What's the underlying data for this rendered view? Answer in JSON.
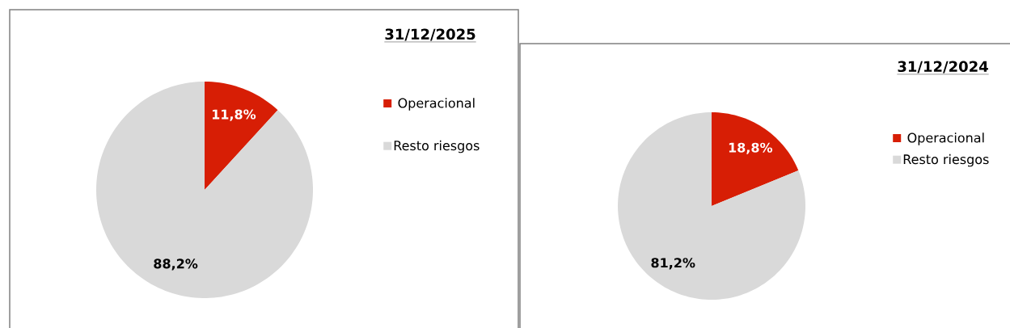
{
  "chart_data": [
    {
      "type": "pie",
      "title": "31/12/2025",
      "categories": [
        "Operacional",
        "Resto riesgos"
      ],
      "values": [
        11.8,
        88.2
      ],
      "colors": [
        "#d71e05",
        "#d9d9d9"
      ],
      "value_labels": [
        "11,8%",
        "88,2%"
      ],
      "legend": "top right"
    },
    {
      "type": "pie",
      "title": "31/12/2024",
      "categories": [
        "Operacional",
        "Resto riesgos"
      ],
      "values": [
        18.8,
        81.2
      ],
      "colors": [
        "#d71e05",
        "#d9d9d9"
      ],
      "value_labels": [
        "18,8%",
        "81,2%"
      ],
      "legend": "top right"
    }
  ]
}
